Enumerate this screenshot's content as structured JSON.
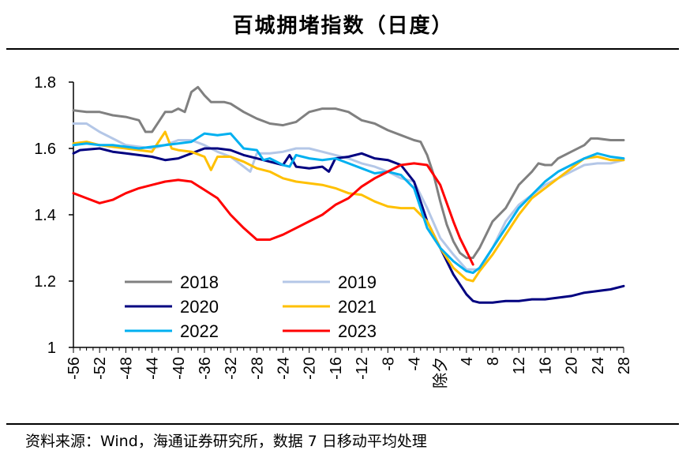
{
  "header": {
    "title": "百城拥堵指数（日度）"
  },
  "footer": {
    "source": "资料来源：Wind，海通证券研究所，数据 7 日移动平均处理"
  },
  "chart_data": {
    "type": "line",
    "title": "百城拥堵指数（日度）",
    "xlabel": "",
    "ylabel": "",
    "ylim": [
      1.0,
      1.8
    ],
    "xlim": [
      -56,
      28
    ],
    "grid": false,
    "legend_position": "bottom-left",
    "x_ticks": [
      "-56",
      "-52",
      "-48",
      "-44",
      "-40",
      "-36",
      "-32",
      "-28",
      "-24",
      "-20",
      "-16",
      "-12",
      "-8",
      "-4",
      "除夕",
      "4",
      "8",
      "12",
      "16",
      "20",
      "24",
      "28"
    ],
    "y_ticks": [
      "1.8",
      "1.6",
      "1.4",
      "1.2",
      "1"
    ],
    "series": [
      {
        "name": "2018",
        "color": "#808080",
        "x": [
          -56,
          -54,
          -52,
          -50,
          -48,
          -46,
          -45,
          -44,
          -43,
          -42,
          -41,
          -40,
          -39,
          -38,
          -37,
          -36,
          -35,
          -34,
          -33,
          -32,
          -30,
          -28,
          -26,
          -24,
          -22,
          -20,
          -18,
          -16,
          -14,
          -12,
          -10,
          -8,
          -6,
          -4,
          -3,
          -2,
          -1,
          0,
          1,
          2,
          3,
          4,
          5,
          6,
          7,
          8,
          10,
          12,
          14,
          15,
          16,
          17,
          18,
          20,
          22,
          23,
          24,
          26,
          28
        ],
        "values": [
          1.715,
          1.71,
          1.71,
          1.7,
          1.695,
          1.685,
          1.65,
          1.65,
          1.68,
          1.71,
          1.71,
          1.72,
          1.71,
          1.77,
          1.785,
          1.76,
          1.74,
          1.74,
          1.74,
          1.735,
          1.71,
          1.69,
          1.675,
          1.67,
          1.68,
          1.71,
          1.72,
          1.72,
          1.71,
          1.685,
          1.675,
          1.655,
          1.64,
          1.625,
          1.62,
          1.58,
          1.52,
          1.44,
          1.37,
          1.32,
          1.285,
          1.27,
          1.27,
          1.3,
          1.34,
          1.38,
          1.42,
          1.49,
          1.53,
          1.555,
          1.55,
          1.55,
          1.57,
          1.59,
          1.61,
          1.63,
          1.63,
          1.625,
          1.625
        ]
      },
      {
        "name": "2019",
        "color": "#b4c7e7",
        "x": [
          -56,
          -54,
          -52,
          -50,
          -48,
          -46,
          -44,
          -42,
          -40,
          -38,
          -36,
          -34,
          -32,
          -30,
          -29,
          -28,
          -27,
          -26,
          -24,
          -22,
          -20,
          -18,
          -16,
          -14,
          -12,
          -10,
          -8,
          -6,
          -4,
          -2,
          0,
          2,
          4,
          6,
          8,
          10,
          12,
          14,
          16,
          18,
          20,
          22,
          24,
          26,
          28
        ],
        "values": [
          1.675,
          1.675,
          1.65,
          1.63,
          1.61,
          1.605,
          1.6,
          1.61,
          1.625,
          1.625,
          1.61,
          1.59,
          1.575,
          1.545,
          1.53,
          1.585,
          1.585,
          1.585,
          1.59,
          1.6,
          1.6,
          1.59,
          1.58,
          1.57,
          1.555,
          1.545,
          1.53,
          1.51,
          1.5,
          1.42,
          1.33,
          1.28,
          1.235,
          1.235,
          1.3,
          1.38,
          1.43,
          1.46,
          1.49,
          1.51,
          1.53,
          1.55,
          1.555,
          1.555,
          1.565
        ]
      },
      {
        "name": "2020",
        "color": "#000080",
        "x": [
          -56,
          -55,
          -52,
          -50,
          -48,
          -46,
          -44,
          -42,
          -40,
          -38,
          -36,
          -34,
          -32,
          -30,
          -28,
          -26,
          -24,
          -23,
          -22,
          -20,
          -18,
          -17,
          -16,
          -14,
          -12,
          -10,
          -8,
          -6,
          -4,
          -2,
          0,
          2,
          4,
          5,
          6,
          8,
          10,
          12,
          14,
          16,
          18,
          20,
          22,
          24,
          26,
          28
        ],
        "values": [
          1.585,
          1.595,
          1.6,
          1.59,
          1.585,
          1.58,
          1.575,
          1.565,
          1.57,
          1.585,
          1.6,
          1.6,
          1.595,
          1.58,
          1.57,
          1.56,
          1.55,
          1.58,
          1.545,
          1.54,
          1.545,
          1.53,
          1.57,
          1.575,
          1.585,
          1.57,
          1.565,
          1.55,
          1.5,
          1.38,
          1.3,
          1.22,
          1.16,
          1.14,
          1.135,
          1.135,
          1.14,
          1.14,
          1.145,
          1.145,
          1.15,
          1.155,
          1.165,
          1.17,
          1.175,
          1.185
        ]
      },
      {
        "name": "2021",
        "color": "#ffc000",
        "x": [
          -56,
          -54,
          -52,
          -50,
          -48,
          -46,
          -44,
          -42,
          -41,
          -40,
          -38,
          -36,
          -35,
          -34,
          -32,
          -30,
          -28,
          -26,
          -24,
          -22,
          -20,
          -18,
          -16,
          -14,
          -12,
          -10,
          -8,
          -6,
          -4,
          -2,
          0,
          2,
          4,
          5,
          6,
          8,
          10,
          12,
          14,
          16,
          18,
          20,
          22,
          24,
          26,
          28
        ],
        "values": [
          1.615,
          1.62,
          1.61,
          1.605,
          1.6,
          1.595,
          1.59,
          1.65,
          1.6,
          1.595,
          1.59,
          1.575,
          1.535,
          1.575,
          1.575,
          1.56,
          1.54,
          1.53,
          1.51,
          1.5,
          1.495,
          1.49,
          1.48,
          1.465,
          1.46,
          1.44,
          1.425,
          1.42,
          1.42,
          1.38,
          1.3,
          1.24,
          1.205,
          1.2,
          1.23,
          1.28,
          1.34,
          1.4,
          1.45,
          1.48,
          1.51,
          1.54,
          1.57,
          1.575,
          1.565,
          1.565
        ]
      },
      {
        "name": "2022",
        "color": "#00b0f0",
        "x": [
          -56,
          -54,
          -52,
          -50,
          -48,
          -46,
          -44,
          -42,
          -40,
          -38,
          -36,
          -34,
          -32,
          -30,
          -28,
          -27,
          -26,
          -24,
          -23,
          -22,
          -20,
          -18,
          -16,
          -14,
          -12,
          -10,
          -8,
          -6,
          -4,
          -2,
          0,
          2,
          4,
          5,
          6,
          8,
          10,
          12,
          14,
          16,
          18,
          20,
          22,
          24,
          26,
          28
        ],
        "values": [
          1.61,
          1.615,
          1.61,
          1.61,
          1.605,
          1.6,
          1.605,
          1.61,
          1.615,
          1.62,
          1.645,
          1.64,
          1.645,
          1.6,
          1.595,
          1.565,
          1.57,
          1.55,
          1.545,
          1.58,
          1.57,
          1.565,
          1.57,
          1.555,
          1.54,
          1.525,
          1.53,
          1.52,
          1.48,
          1.36,
          1.3,
          1.26,
          1.23,
          1.225,
          1.24,
          1.3,
          1.36,
          1.42,
          1.46,
          1.5,
          1.53,
          1.55,
          1.57,
          1.585,
          1.575,
          1.57
        ]
      },
      {
        "name": "2023",
        "color": "#ff0000",
        "x": [
          -56,
          -54,
          -52,
          -50,
          -48,
          -46,
          -44,
          -42,
          -40,
          -38,
          -36,
          -34,
          -32,
          -30,
          -28,
          -26,
          -24,
          -22,
          -20,
          -18,
          -16,
          -14,
          -12,
          -10,
          -8,
          -6,
          -4,
          -2,
          0,
          2,
          3,
          4,
          5
        ],
        "values": [
          1.465,
          1.45,
          1.435,
          1.445,
          1.465,
          1.48,
          1.49,
          1.5,
          1.505,
          1.5,
          1.475,
          1.45,
          1.4,
          1.36,
          1.325,
          1.325,
          1.34,
          1.36,
          1.38,
          1.4,
          1.43,
          1.45,
          1.485,
          1.51,
          1.53,
          1.55,
          1.555,
          1.55,
          1.49,
          1.38,
          1.33,
          1.29,
          1.25
        ]
      }
    ]
  }
}
